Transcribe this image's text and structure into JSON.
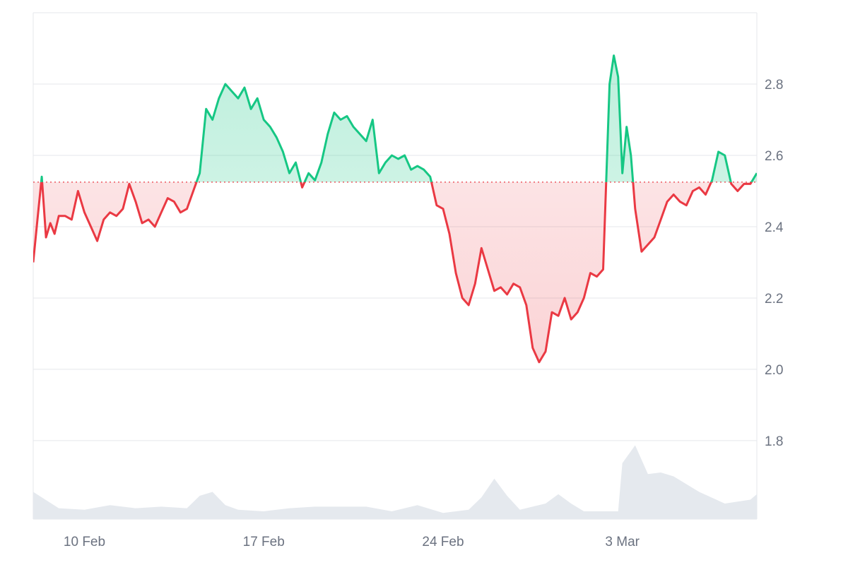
{
  "chart_data": {
    "type": "line",
    "x_unit": "date",
    "baseline": 2.525,
    "ylim": [
      1.58,
      3.0
    ],
    "xlim": [
      "2025-02-08T00:00",
      "2025-03-08T06:00"
    ],
    "y_ticks": [
      {
        "value": 1.8,
        "label": "1.8"
      },
      {
        "value": 2.0,
        "label": "2.0"
      },
      {
        "value": 2.2,
        "label": "2.2"
      },
      {
        "value": 2.4,
        "label": "2.4"
      },
      {
        "value": 2.6,
        "label": "2.6"
      },
      {
        "value": 2.8,
        "label": "2.8"
      }
    ],
    "x_ticks": [
      {
        "value": "2025-02-10",
        "label": "10 Feb"
      },
      {
        "value": "2025-02-17",
        "label": "17 Feb"
      },
      {
        "value": "2025-02-24",
        "label": "24 Feb"
      },
      {
        "value": "2025-03-03",
        "label": "3 Mar"
      }
    ],
    "grid": true,
    "colors": {
      "above": "#16c784",
      "above_fill": "#d5f5e6",
      "below": "#ea3943",
      "below_fill": "#fde6e7",
      "grid": "#e5e7eb",
      "baseline": "#ea3943",
      "volume": "#e5e9ee"
    },
    "series": [
      {
        "x": [
          "2025-02-08T00:00",
          "2025-02-08T04:00",
          "2025-02-08T08:00",
          "2025-02-08T12:00",
          "2025-02-08T16:00",
          "2025-02-08T20:00",
          "2025-02-09T00:00",
          "2025-02-09T06:00",
          "2025-02-09T12:00",
          "2025-02-09T18:00",
          "2025-02-10T00:00",
          "2025-02-10T06:00",
          "2025-02-10T12:00",
          "2025-02-10T18:00",
          "2025-02-11T00:00",
          "2025-02-11T06:00",
          "2025-02-11T12:00",
          "2025-02-11T18:00",
          "2025-02-12T00:00",
          "2025-02-12T06:00",
          "2025-02-12T12:00",
          "2025-02-12T18:00",
          "2025-02-13T00:00",
          "2025-02-13T06:00",
          "2025-02-13T12:00",
          "2025-02-13T18:00",
          "2025-02-14T00:00",
          "2025-02-14T06:00",
          "2025-02-14T12:00",
          "2025-02-14T18:00",
          "2025-02-15T00:00",
          "2025-02-15T06:00",
          "2025-02-15T12:00",
          "2025-02-15T18:00",
          "2025-02-16T00:00",
          "2025-02-16T06:00",
          "2025-02-16T12:00",
          "2025-02-16T18:00",
          "2025-02-17T00:00",
          "2025-02-17T06:00",
          "2025-02-17T12:00",
          "2025-02-17T18:00",
          "2025-02-18T00:00",
          "2025-02-18T06:00",
          "2025-02-18T12:00",
          "2025-02-18T18:00",
          "2025-02-19T00:00",
          "2025-02-19T06:00",
          "2025-02-19T12:00",
          "2025-02-19T18:00",
          "2025-02-20T00:00",
          "2025-02-20T06:00",
          "2025-02-20T12:00",
          "2025-02-20T18:00",
          "2025-02-21T00:00",
          "2025-02-21T06:00",
          "2025-02-21T12:00",
          "2025-02-21T18:00",
          "2025-02-22T00:00",
          "2025-02-22T06:00",
          "2025-02-22T12:00",
          "2025-02-22T18:00",
          "2025-02-23T00:00",
          "2025-02-23T06:00",
          "2025-02-23T12:00",
          "2025-02-23T18:00",
          "2025-02-24T00:00",
          "2025-02-24T06:00",
          "2025-02-24T12:00",
          "2025-02-24T18:00",
          "2025-02-25T00:00",
          "2025-02-25T06:00",
          "2025-02-25T12:00",
          "2025-02-25T18:00",
          "2025-02-26T00:00",
          "2025-02-26T06:00",
          "2025-02-26T12:00",
          "2025-02-26T18:00",
          "2025-02-27T00:00",
          "2025-02-27T06:00",
          "2025-02-27T12:00",
          "2025-02-27T18:00",
          "2025-02-28T00:00",
          "2025-02-28T06:00",
          "2025-02-28T12:00",
          "2025-02-28T18:00",
          "2025-03-01T00:00",
          "2025-03-01T06:00",
          "2025-03-01T12:00",
          "2025-03-01T18:00",
          "2025-03-02T00:00",
          "2025-03-02T06:00",
          "2025-03-02T12:00",
          "2025-03-02T16:00",
          "2025-03-02T20:00",
          "2025-03-03T00:00",
          "2025-03-03T04:00",
          "2025-03-03T08:00",
          "2025-03-03T12:00",
          "2025-03-03T18:00",
          "2025-03-04T00:00",
          "2025-03-04T06:00",
          "2025-03-04T12:00",
          "2025-03-04T18:00",
          "2025-03-05T00:00",
          "2025-03-05T06:00",
          "2025-03-05T12:00",
          "2025-03-05T18:00",
          "2025-03-06T00:00",
          "2025-03-06T06:00",
          "2025-03-06T12:00",
          "2025-03-06T18:00",
          "2025-03-07T00:00",
          "2025-03-07T06:00",
          "2025-03-07T12:00",
          "2025-03-07T18:00",
          "2025-03-08T00:00",
          "2025-03-08T06:00"
        ],
        "y": [
          2.3,
          2.42,
          2.54,
          2.37,
          2.41,
          2.38,
          2.43,
          2.43,
          2.42,
          2.5,
          2.44,
          2.4,
          2.36,
          2.42,
          2.44,
          2.43,
          2.45,
          2.52,
          2.47,
          2.41,
          2.42,
          2.4,
          2.44,
          2.48,
          2.47,
          2.44,
          2.45,
          2.5,
          2.55,
          2.73,
          2.7,
          2.76,
          2.8,
          2.78,
          2.76,
          2.79,
          2.73,
          2.76,
          2.7,
          2.68,
          2.65,
          2.61,
          2.55,
          2.58,
          2.51,
          2.55,
          2.53,
          2.58,
          2.66,
          2.72,
          2.7,
          2.71,
          2.68,
          2.66,
          2.64,
          2.7,
          2.55,
          2.58,
          2.6,
          2.59,
          2.6,
          2.56,
          2.57,
          2.56,
          2.54,
          2.46,
          2.45,
          2.38,
          2.27,
          2.2,
          2.18,
          2.24,
          2.34,
          2.28,
          2.22,
          2.23,
          2.21,
          2.24,
          2.23,
          2.18,
          2.06,
          2.02,
          2.05,
          2.16,
          2.15,
          2.2,
          2.14,
          2.16,
          2.2,
          2.27,
          2.26,
          2.28,
          2.8,
          2.88,
          2.82,
          2.55,
          2.68,
          2.6,
          2.45,
          2.33,
          2.35,
          2.37,
          2.42,
          2.47,
          2.49,
          2.47,
          2.46,
          2.5,
          2.51,
          2.49,
          2.53,
          2.61,
          2.6,
          2.52,
          2.5,
          2.52,
          2.52,
          2.55
        ]
      }
    ],
    "volume": {
      "x": [
        "2025-02-08T00:00",
        "2025-02-09T00:00",
        "2025-02-10T00:00",
        "2025-02-11T00:00",
        "2025-02-12T00:00",
        "2025-02-13T00:00",
        "2025-02-14T00:00",
        "2025-02-14T12:00",
        "2025-02-15T00:00",
        "2025-02-15T12:00",
        "2025-02-16T00:00",
        "2025-02-17T00:00",
        "2025-02-18T00:00",
        "2025-02-19T00:00",
        "2025-02-20T00:00",
        "2025-02-21T00:00",
        "2025-02-22T00:00",
        "2025-02-23T00:00",
        "2025-02-24T00:00",
        "2025-02-25T00:00",
        "2025-02-25T12:00",
        "2025-02-26T00:00",
        "2025-02-26T12:00",
        "2025-02-27T00:00",
        "2025-02-28T00:00",
        "2025-02-28T12:00",
        "2025-03-01T00:00",
        "2025-03-01T12:00",
        "2025-03-02T00:00",
        "2025-03-02T20:00",
        "2025-03-03T00:00",
        "2025-03-03T12:00",
        "2025-03-04T00:00",
        "2025-03-04T12:00",
        "2025-03-05T00:00",
        "2025-03-06T00:00",
        "2025-03-07T00:00",
        "2025-03-08T00:00",
        "2025-03-08T06:00"
      ],
      "values": [
        0.35,
        0.14,
        0.12,
        0.18,
        0.14,
        0.16,
        0.14,
        0.3,
        0.35,
        0.18,
        0.12,
        0.1,
        0.14,
        0.16,
        0.16,
        0.16,
        0.1,
        0.18,
        0.08,
        0.12,
        0.28,
        0.52,
        0.3,
        0.12,
        0.2,
        0.32,
        0.2,
        0.1,
        0.1,
        0.1,
        0.72,
        0.95,
        0.58,
        0.6,
        0.55,
        0.35,
        0.2,
        0.25,
        0.32
      ]
    }
  }
}
